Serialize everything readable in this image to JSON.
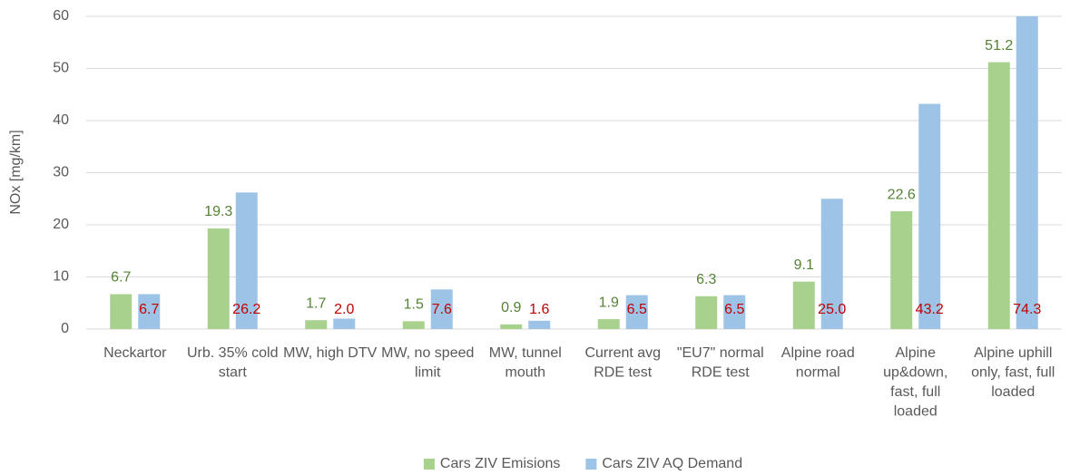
{
  "chart_data": {
    "type": "bar",
    "y_label": "NOx [mg/km]",
    "categories": [
      "Neckartor",
      "Urb. 35% cold start",
      "MW, high DTV",
      "MW, no speed limit",
      "MW, tunnel mouth",
      "Current avg RDE test",
      "\"EU7\" normal RDE test",
      "Alpine road normal",
      "Alpine up&down, fast, full loaded",
      "Alpine uphill only, fast, full loaded"
    ],
    "series": [
      {
        "name": "Cars ZIV Emisions",
        "color": "#a9d18e",
        "label_color": "#548235",
        "values": [
          6.7,
          19.3,
          1.7,
          1.5,
          0.9,
          1.9,
          6.3,
          9.1,
          22.6,
          51.2
        ]
      },
      {
        "name": "Cars ZIV AQ Demand",
        "color": "#9dc3e6",
        "label_color": "#c00000",
        "values": [
          6.7,
          26.2,
          2.0,
          7.6,
          1.6,
          6.5,
          6.5,
          25.0,
          43.2,
          74.3
        ],
        "value_labels": [
          "6.7",
          "26.2",
          "2.0",
          "7.6",
          "1.6",
          "6.5",
          "6.5",
          "25.0",
          "43.2",
          "74.3"
        ]
      }
    ],
    "ylim": [
      0,
      60
    ],
    "yticks": [
      0,
      10,
      20,
      30,
      40,
      50,
      60
    ],
    "grid": true,
    "legend": "bottom"
  }
}
